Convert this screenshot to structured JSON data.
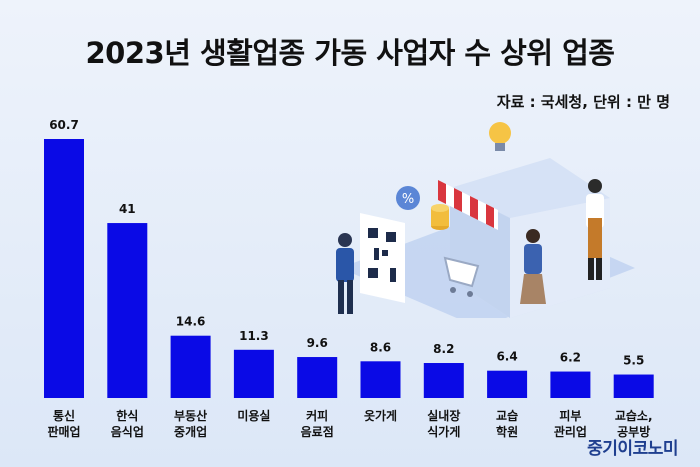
{
  "title": "2023년 생활업종 가동 사업자 수 상위 업종",
  "source": "자료 : 국세청, 단위 : 만 명",
  "watermark": "중기이코노미",
  "colors": {
    "bar": "#0a0ae6",
    "background": "#e6edf8",
    "text": "#111111"
  },
  "chart_data": {
    "type": "bar",
    "title": "2023년 생활업종 가동 사업자 수 상위 업종",
    "xlabel": "",
    "ylabel": "",
    "ylim": [
      0,
      60.7
    ],
    "grid": false,
    "categories": [
      [
        "통신",
        "판매업"
      ],
      [
        "한식",
        "음식업"
      ],
      [
        "부동산",
        "중개업"
      ],
      [
        "미용실"
      ],
      [
        "커피",
        "음료점"
      ],
      [
        "옷가게"
      ],
      [
        "실내장",
        "식가게"
      ],
      [
        "교습",
        "학원"
      ],
      [
        "피부",
        "관리업"
      ],
      [
        "교습소,",
        "공부방"
      ]
    ],
    "values": [
      60.7,
      41,
      14.6,
      11.3,
      9.6,
      8.6,
      8.2,
      6.4,
      6.2,
      5.5
    ],
    "value_labels": [
      "60.7",
      "41",
      "14.6",
      "11.3",
      "9.6",
      "8.6",
      "8.2",
      "6.4",
      "6.2",
      "5.5"
    ]
  }
}
